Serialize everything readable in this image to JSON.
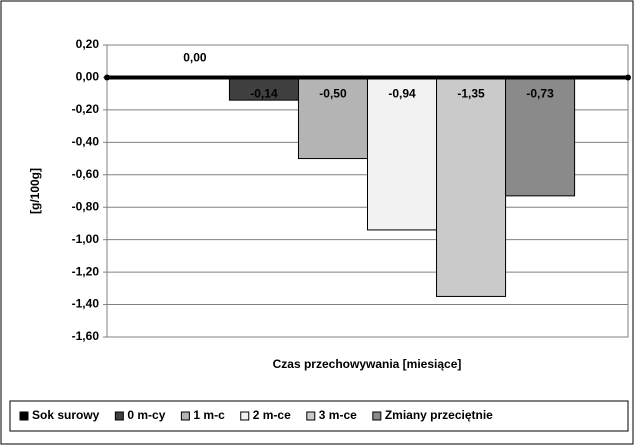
{
  "chart_data": {
    "type": "bar",
    "categories": [
      null
    ],
    "ylabel": "[g/100g]",
    "xlabel": "Czas przechowywania [miesiące]",
    "series": [
      {
        "name": "Sok surowy",
        "color": "#000000",
        "values": [
          0.0
        ],
        "value_labels": [
          "0,00"
        ]
      },
      {
        "name": "0 m-cy",
        "color": "#404040",
        "values": [
          -0.14
        ],
        "value_labels": [
          "-0,14"
        ]
      },
      {
        "name": "1 m-c",
        "color": "#b4b4b4",
        "values": [
          -0.5
        ],
        "value_labels": [
          "-0,50"
        ]
      },
      {
        "name": "2 m-ce",
        "color": "#f2f2f2",
        "values": [
          -0.94
        ],
        "value_labels": [
          "-0,94"
        ]
      },
      {
        "name": "3 m-ce",
        "color": "#cacaca",
        "values": [
          -1.35
        ],
        "value_labels": [
          "-1,35"
        ]
      },
      {
        "name": "Zmiany przeciętnie",
        "color": "#8a8a8a",
        "values": [
          -0.73
        ],
        "value_labels": [
          "-0,73"
        ]
      }
    ],
    "ylim": [
      -1.6,
      0.2
    ],
    "yticks": [
      {
        "value": 0.2,
        "label": "0,20"
      },
      {
        "value": 0,
        "label": "0,00"
      },
      {
        "value": -0.2,
        "label": "-0,20"
      },
      {
        "value": -0.4,
        "label": "-0,40"
      },
      {
        "value": -0.6,
        "label": "-0,60"
      },
      {
        "value": -0.8,
        "label": "-0,80"
      },
      {
        "value": -1.0,
        "label": "-1,00"
      },
      {
        "value": -1.2,
        "label": "-1,20"
      },
      {
        "value": -1.4,
        "label": "-1,40"
      },
      {
        "value": -1.6,
        "label": "-1,60"
      }
    ],
    "grid": true,
    "legend": "bottom"
  }
}
